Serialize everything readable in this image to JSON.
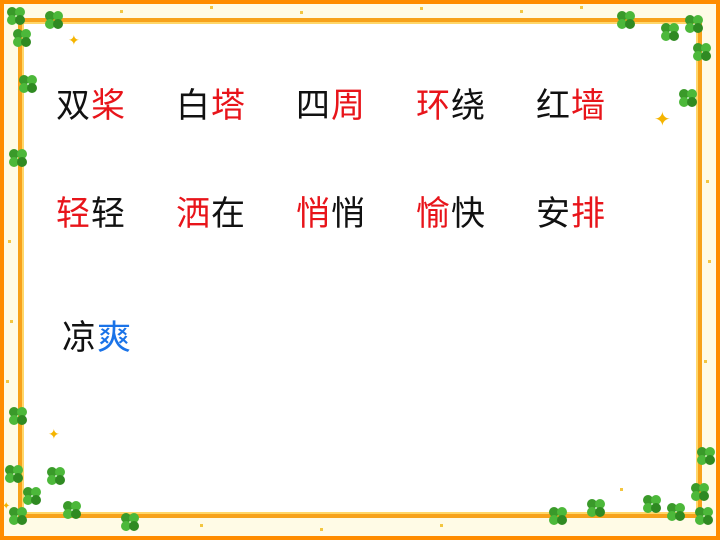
{
  "rows": [
    [
      {
        "a": "双",
        "b": "桨",
        "hl": "b",
        "color": "red"
      },
      {
        "a": "白",
        "b": "塔",
        "hl": "b",
        "color": "red"
      },
      {
        "a": "四",
        "b": "周",
        "hl": "b",
        "color": "red"
      },
      {
        "a": "环",
        "b": "绕",
        "hl": "a",
        "color": "red"
      },
      {
        "a": "红",
        "b": "墙",
        "hl": "b",
        "color": "red"
      }
    ],
    [
      {
        "a": "轻",
        "b": "轻",
        "hl": "a",
        "color": "red"
      },
      {
        "a": "洒",
        "b": "在",
        "hl": "a",
        "color": "red"
      },
      {
        "a": "悄",
        "b": "悄",
        "hl": "a",
        "color": "red"
      },
      {
        "a": "愉",
        "b": "快",
        "hl": "a",
        "color": "red"
      },
      {
        "a": "安",
        "b": "排",
        "hl": "b",
        "color": "red"
      }
    ],
    [
      {
        "a": "凉",
        "b": "爽",
        "hl": "b",
        "color": "blue"
      }
    ]
  ],
  "colors": {
    "highlight_red": "#e8141a",
    "highlight_blue": "#1a73e8",
    "text": "#111111",
    "frame": "#ff8c00"
  }
}
